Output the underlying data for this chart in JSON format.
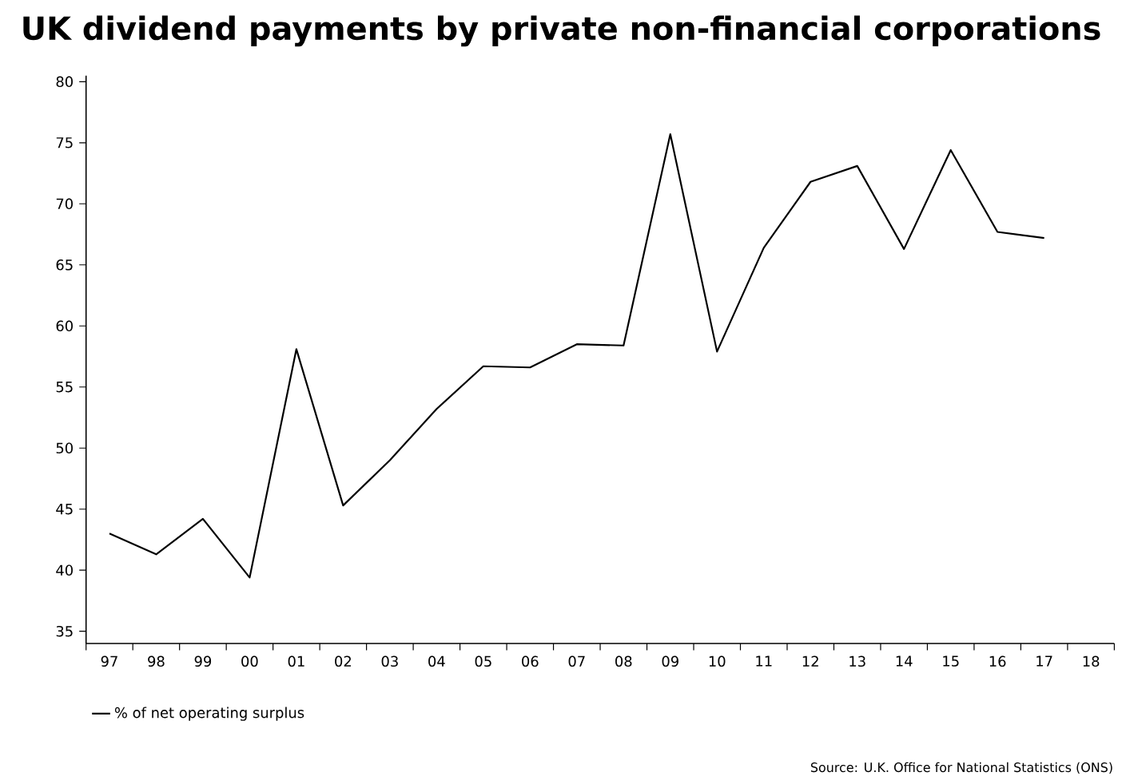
{
  "chart_data": {
    "type": "line",
    "title": "UK dividend payments by private non-financial corporations",
    "categories": [
      "97",
      "98",
      "99",
      "00",
      "01",
      "02",
      "03",
      "04",
      "05",
      "06",
      "07",
      "08",
      "09",
      "10",
      "11",
      "12",
      "13",
      "14",
      "15",
      "16",
      "17",
      "18"
    ],
    "series": [
      {
        "name": "% of net operating surplus",
        "color": "#000000",
        "values": [
          43.0,
          41.3,
          44.2,
          39.4,
          58.1,
          45.3,
          49.0,
          53.2,
          56.7,
          56.6,
          58.5,
          58.4,
          75.7,
          57.9,
          66.4,
          71.8,
          73.1,
          66.3,
          74.4,
          67.7,
          67.2,
          null
        ]
      }
    ],
    "ylim": [
      34,
      80.5
    ],
    "yticks": [
      35,
      40,
      45,
      50,
      55,
      60,
      65,
      70,
      75,
      80
    ],
    "grid": false,
    "legend": "bottom left",
    "marker": "none",
    "line_style": "solid",
    "annotations": [
      "Source: U.K. Office for National Statistics (ONS)"
    ]
  }
}
